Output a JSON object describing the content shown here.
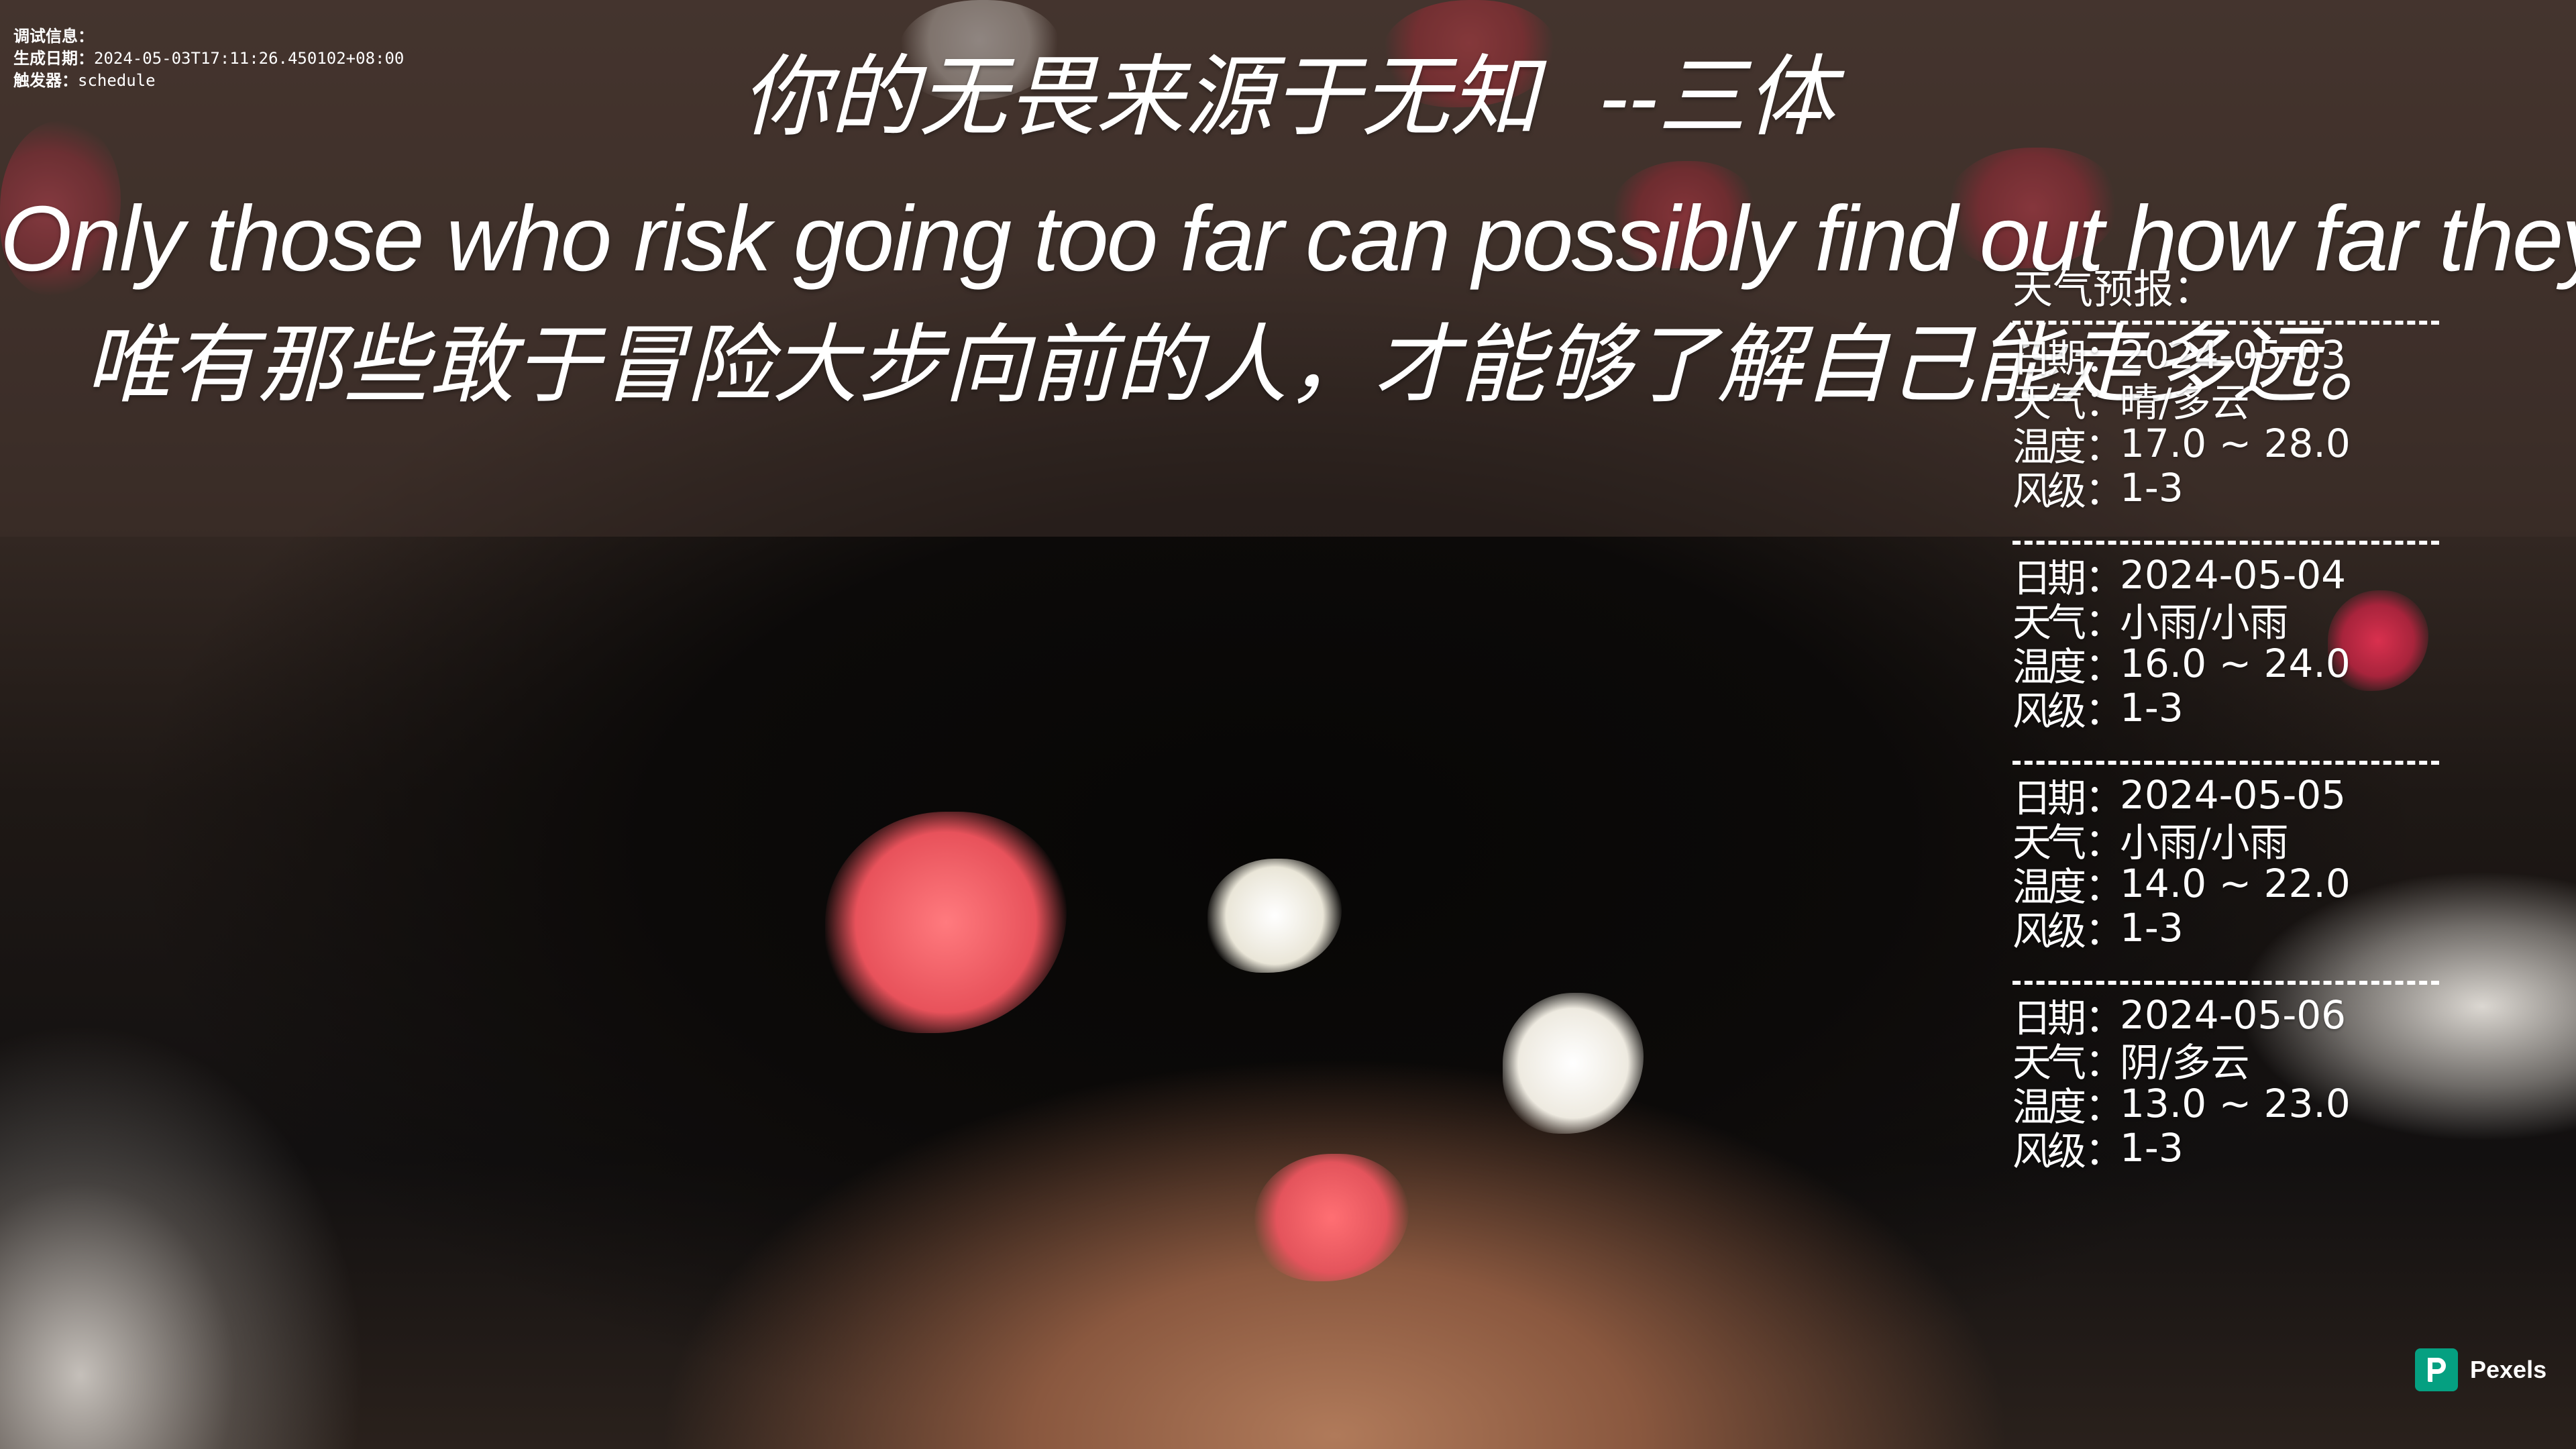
{
  "debug": {
    "line1_label": "调试信息：",
    "line2_label": "生成日期：",
    "line2_value": "2024-05-03T17:11:26.450102+08:00",
    "line3_label": "触发器：",
    "line3_value": "schedule"
  },
  "quotes": {
    "chinese_line": "你的无畏来源于无知",
    "chinese_author": "--三体",
    "english_line": "Only those who risk going too far can possibly find out how far they can go.",
    "chinese_translation": "唯有那些敢于冒险大步向前的人，才能够了解自己能走多远。"
  },
  "weather": {
    "title": "天气预报：",
    "labels": {
      "date": "日期",
      "weather": "天气",
      "temperature": "温度",
      "wind": "风级",
      "colon": "："
    },
    "days": [
      {
        "date": "2024-05-03",
        "weather": "晴/多云",
        "temperature": "17.0 ~ 28.0",
        "wind": "1-3"
      },
      {
        "date": "2024-05-04",
        "weather": "小雨/小雨",
        "temperature": "16.0 ~ 24.0",
        "wind": "1-3"
      },
      {
        "date": "2024-05-05",
        "weather": "小雨/小雨",
        "temperature": "14.0 ~ 22.0",
        "wind": "1-3"
      },
      {
        "date": "2024-05-06",
        "weather": "阴/多云",
        "temperature": "13.0 ~ 23.0",
        "wind": "1-3"
      }
    ]
  },
  "attribution": {
    "text": "Pexels",
    "icon": "pexels-logo-icon",
    "color": "#05A081"
  },
  "colors": {
    "text": "#FFFFFF",
    "overlay_band": "#3E302A"
  }
}
